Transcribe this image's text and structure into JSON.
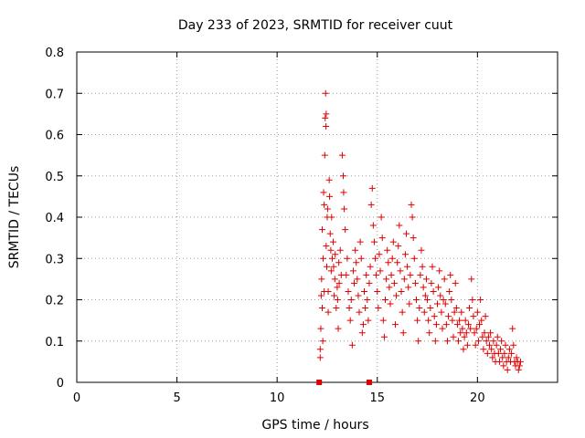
{
  "chart_data": {
    "type": "scatter",
    "title": "Day 233 of 2023, SRMTID for receiver cuut",
    "xlabel": "GPS time / hours",
    "ylabel": "SRMTID / TECUs",
    "xlim": [
      0,
      24
    ],
    "ylim": [
      0,
      0.8
    ],
    "x_ticks": [
      0,
      5,
      10,
      15,
      20
    ],
    "x_tick_labels": [
      "0",
      "5",
      "10",
      "15",
      "20"
    ],
    "y_ticks": [
      0,
      0.1,
      0.2,
      0.3,
      0.4,
      0.5,
      0.6,
      0.7,
      0.8
    ],
    "y_tick_labels": [
      "0",
      "0.1",
      "0.2",
      "0.3",
      "0.4",
      "0.5",
      "0.6",
      "0.7",
      "0.8"
    ],
    "grid": true,
    "marker": "+",
    "series_color": "#dd0000",
    "square_markers": [
      {
        "x": 12.1,
        "y": 0
      },
      {
        "x": 14.6,
        "y": 0
      }
    ],
    "series": [
      {
        "name": "SRMTID",
        "points": [
          [
            12.15,
            0.06
          ],
          [
            12.15,
            0.08
          ],
          [
            12.18,
            0.13
          ],
          [
            12.2,
            0.21
          ],
          [
            12.22,
            0.25
          ],
          [
            12.25,
            0.18
          ],
          [
            12.25,
            0.37
          ],
          [
            12.28,
            0.1
          ],
          [
            12.3,
            0.3
          ],
          [
            12.32,
            0.46
          ],
          [
            12.35,
            0.43
          ],
          [
            12.35,
            0.22
          ],
          [
            12.38,
            0.55
          ],
          [
            12.4,
            0.64
          ],
          [
            12.42,
            0.7
          ],
          [
            12.44,
            0.62
          ],
          [
            12.45,
            0.65
          ],
          [
            12.45,
            0.33
          ],
          [
            12.48,
            0.28
          ],
          [
            12.5,
            0.4
          ],
          [
            12.52,
            0.42
          ],
          [
            12.55,
            0.17
          ],
          [
            12.55,
            0.22
          ],
          [
            12.6,
            0.49
          ],
          [
            12.62,
            0.45
          ],
          [
            12.65,
            0.36
          ],
          [
            12.68,
            0.32
          ],
          [
            12.7,
            0.27
          ],
          [
            12.72,
            0.4
          ],
          [
            12.75,
            0.3
          ],
          [
            12.8,
            0.34
          ],
          [
            12.82,
            0.28
          ],
          [
            12.85,
            0.21
          ],
          [
            12.88,
            0.25
          ],
          [
            12.9,
            0.31
          ],
          [
            12.95,
            0.18
          ],
          [
            13.0,
            0.23
          ],
          [
            13.02,
            0.2
          ],
          [
            13.05,
            0.13
          ],
          [
            13.08,
            0.29
          ],
          [
            13.1,
            0.24
          ],
          [
            13.15,
            0.32
          ],
          [
            13.2,
            0.26
          ],
          [
            13.25,
            0.55
          ],
          [
            13.3,
            0.5
          ],
          [
            13.32,
            0.46
          ],
          [
            13.35,
            0.42
          ],
          [
            13.4,
            0.37
          ],
          [
            13.45,
            0.26
          ],
          [
            13.5,
            0.3
          ],
          [
            13.55,
            0.22
          ],
          [
            13.6,
            0.18
          ],
          [
            13.65,
            0.15
          ],
          [
            13.7,
            0.2
          ],
          [
            13.75,
            0.09
          ],
          [
            13.8,
            0.27
          ],
          [
            13.85,
            0.24
          ],
          [
            13.9,
            0.32
          ],
          [
            13.95,
            0.29
          ],
          [
            14.0,
            0.25
          ],
          [
            14.05,
            0.21
          ],
          [
            14.1,
            0.17
          ],
          [
            14.15,
            0.34
          ],
          [
            14.2,
            0.3
          ],
          [
            14.25,
            0.12
          ],
          [
            14.3,
            0.14
          ],
          [
            14.35,
            0.22
          ],
          [
            14.4,
            0.18
          ],
          [
            14.45,
            0.26
          ],
          [
            14.5,
            0.2
          ],
          [
            14.55,
            0.15
          ],
          [
            14.6,
            0.24
          ],
          [
            14.65,
            0.28
          ],
          [
            14.7,
            0.43
          ],
          [
            14.75,
            0.47
          ],
          [
            14.8,
            0.38
          ],
          [
            14.85,
            0.34
          ],
          [
            14.9,
            0.3
          ],
          [
            14.95,
            0.26
          ],
          [
            15.0,
            0.22
          ],
          [
            15.05,
            0.18
          ],
          [
            15.1,
            0.31
          ],
          [
            15.15,
            0.27
          ],
          [
            15.2,
            0.4
          ],
          [
            15.25,
            0.35
          ],
          [
            15.3,
            0.15
          ],
          [
            15.35,
            0.11
          ],
          [
            15.4,
            0.2
          ],
          [
            15.45,
            0.25
          ],
          [
            15.5,
            0.32
          ],
          [
            15.55,
            0.29
          ],
          [
            15.6,
            0.23
          ],
          [
            15.65,
            0.19
          ],
          [
            15.7,
            0.26
          ],
          [
            15.75,
            0.3
          ],
          [
            15.8,
            0.34
          ],
          [
            15.85,
            0.24
          ],
          [
            15.9,
            0.14
          ],
          [
            15.95,
            0.21
          ],
          [
            16.0,
            0.29
          ],
          [
            16.05,
            0.33
          ],
          [
            16.1,
            0.38
          ],
          [
            16.15,
            0.27
          ],
          [
            16.2,
            0.22
          ],
          [
            16.25,
            0.17
          ],
          [
            16.3,
            0.12
          ],
          [
            16.35,
            0.25
          ],
          [
            16.4,
            0.31
          ],
          [
            16.45,
            0.36
          ],
          [
            16.5,
            0.28
          ],
          [
            16.55,
            0.23
          ],
          [
            16.6,
            0.19
          ],
          [
            16.65,
            0.26
          ],
          [
            16.7,
            0.43
          ],
          [
            16.75,
            0.4
          ],
          [
            16.8,
            0.35
          ],
          [
            16.85,
            0.3
          ],
          [
            16.9,
            0.24
          ],
          [
            16.95,
            0.2
          ],
          [
            17.0,
            0.15
          ],
          [
            17.05,
            0.1
          ],
          [
            17.1,
            0.18
          ],
          [
            17.15,
            0.26
          ],
          [
            17.2,
            0.32
          ],
          [
            17.25,
            0.28
          ],
          [
            17.3,
            0.23
          ],
          [
            17.35,
            0.17
          ],
          [
            17.4,
            0.21
          ],
          [
            17.45,
            0.25
          ],
          [
            17.5,
            0.2
          ],
          [
            17.55,
            0.15
          ],
          [
            17.6,
            0.12
          ],
          [
            17.65,
            0.18
          ],
          [
            17.7,
            0.24
          ],
          [
            17.75,
            0.28
          ],
          [
            17.8,
            0.22
          ],
          [
            17.85,
            0.16
          ],
          [
            17.9,
            0.1
          ],
          [
            17.95,
            0.14
          ],
          [
            18.0,
            0.19
          ],
          [
            18.05,
            0.23
          ],
          [
            18.1,
            0.27
          ],
          [
            18.15,
            0.21
          ],
          [
            18.2,
            0.17
          ],
          [
            18.25,
            0.13
          ],
          [
            18.3,
            0.2
          ],
          [
            18.35,
            0.25
          ],
          [
            18.4,
            0.19
          ],
          [
            18.45,
            0.14
          ],
          [
            18.5,
            0.1
          ],
          [
            18.55,
            0.16
          ],
          [
            18.6,
            0.22
          ],
          [
            18.65,
            0.26
          ],
          [
            18.7,
            0.2
          ],
          [
            18.75,
            0.15
          ],
          [
            18.8,
            0.11
          ],
          [
            18.85,
            0.17
          ],
          [
            18.9,
            0.24
          ],
          [
            18.95,
            0.18
          ],
          [
            19.0,
            0.14
          ],
          [
            19.05,
            0.1
          ],
          [
            19.1,
            0.15
          ],
          [
            19.15,
            0.12
          ],
          [
            19.2,
            0.17
          ],
          [
            19.25,
            0.13
          ],
          [
            19.3,
            0.08
          ],
          [
            19.35,
            0.11
          ],
          [
            19.4,
            0.15
          ],
          [
            19.45,
            0.12
          ],
          [
            19.5,
            0.09
          ],
          [
            19.55,
            0.14
          ],
          [
            19.6,
            0.18
          ],
          [
            19.65,
            0.13
          ],
          [
            19.7,
            0.25
          ],
          [
            19.75,
            0.2
          ],
          [
            19.8,
            0.16
          ],
          [
            19.85,
            0.12
          ],
          [
            19.9,
            0.09
          ],
          [
            19.95,
            0.13
          ],
          [
            20.0,
            0.17
          ],
          [
            20.05,
            0.1
          ],
          [
            20.1,
            0.14
          ],
          [
            20.15,
            0.2
          ],
          [
            20.2,
            0.15
          ],
          [
            20.25,
            0.11
          ],
          [
            20.3,
            0.08
          ],
          [
            20.35,
            0.12
          ],
          [
            20.4,
            0.16
          ],
          [
            20.45,
            0.1
          ],
          [
            20.5,
            0.07
          ],
          [
            20.55,
            0.11
          ],
          [
            20.6,
            0.09
          ],
          [
            20.65,
            0.12
          ],
          [
            20.7,
            0.08
          ],
          [
            20.75,
            0.06
          ],
          [
            20.8,
            0.1
          ],
          [
            20.85,
            0.07
          ],
          [
            20.9,
            0.05
          ],
          [
            20.95,
            0.09
          ],
          [
            21.0,
            0.11
          ],
          [
            21.05,
            0.07
          ],
          [
            21.1,
            0.05
          ],
          [
            21.15,
            0.08
          ],
          [
            21.2,
            0.1
          ],
          [
            21.25,
            0.06
          ],
          [
            21.3,
            0.04
          ],
          [
            21.35,
            0.07
          ],
          [
            21.4,
            0.09
          ],
          [
            21.45,
            0.05
          ],
          [
            21.5,
            0.03
          ],
          [
            21.55,
            0.06
          ],
          [
            21.6,
            0.08
          ],
          [
            21.65,
            0.05
          ],
          [
            21.7,
            0.07
          ],
          [
            21.75,
            0.13
          ],
          [
            21.8,
            0.09
          ],
          [
            21.85,
            0.05
          ],
          [
            21.9,
            0.04
          ],
          [
            21.95,
            0.06
          ],
          [
            22.0,
            0.05
          ],
          [
            22.05,
            0.03
          ],
          [
            22.1,
            0.04
          ],
          [
            22.15,
            0.05
          ]
        ]
      }
    ]
  }
}
